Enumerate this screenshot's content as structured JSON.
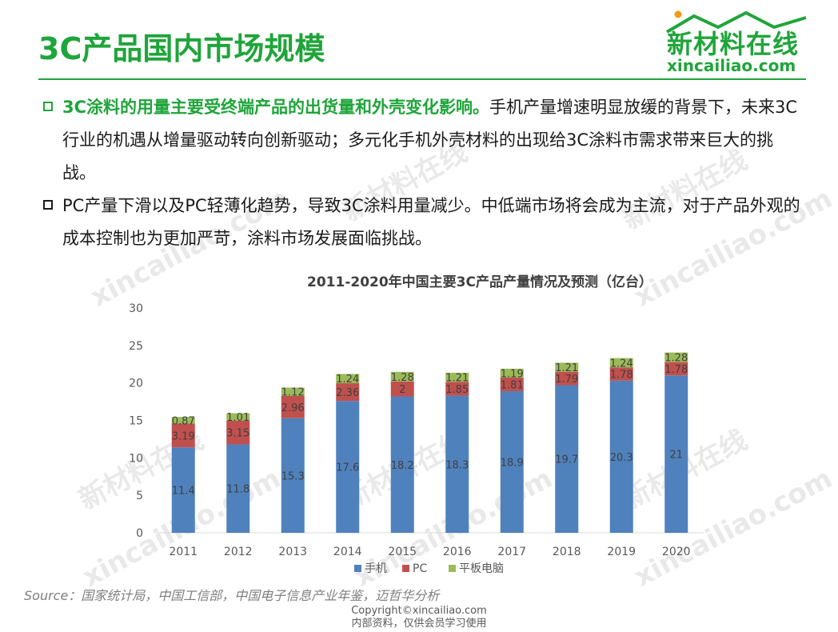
{
  "page": {
    "title": "3C产品国内市场规模",
    "logo_cn": "新材料在线",
    "logo_en": "xincailiao.com",
    "bullets": [
      {
        "highlight": "3C涂料的用量主要受终端产品的出货量和外壳变化影响。",
        "text": "手机产量增速明显放缓的背景下，未来3C行业的机遇从增量驱动转向创新驱动；多元化手机外壳材料的出现给3C涂料市需求带来巨大的挑战。"
      },
      {
        "highlight": "",
        "text": "PC产量下滑以及PC轻薄化趋势，导致3C涂料用量减少。中低端市场将会成为主流，对于产品外观的成本控制也为更加严苛，涂料市场发展面临挑战。"
      }
    ],
    "source": "Source：国家统计局，中国工信部，中国电子信息产业年鉴，迈哲华分析",
    "copyright_line1": "Copyright©xincailiao.com",
    "copyright_line2": "内部资料，仅供会员学习使用",
    "watermark_cn": "新材料在线",
    "watermark_en": "xincailiao.com"
  },
  "colors": {
    "brand_green": "#1fa53a",
    "phone": "#4f81bd",
    "pc": "#c0504d",
    "tablet": "#9bbb59"
  },
  "chart_data": {
    "type": "bar",
    "stacked": true,
    "title": "2011-2020年中国主要3C产品产量情况及预测（亿台）",
    "categories": [
      "2011",
      "2012",
      "2013",
      "2014",
      "2015",
      "2016",
      "2017",
      "2018",
      "2019",
      "2020"
    ],
    "series": [
      {
        "name": "手机",
        "color": "#4f81bd",
        "values": [
          11.4,
          11.8,
          15.3,
          17.6,
          18.2,
          18.3,
          18.9,
          19.7,
          20.3,
          21
        ]
      },
      {
        "name": "PC",
        "color": "#c0504d",
        "values": [
          3.19,
          3.15,
          2.96,
          2.36,
          2,
          1.85,
          1.81,
          1.79,
          1.78,
          1.78
        ]
      },
      {
        "name": "平板电脑",
        "color": "#9bbb59",
        "values": [
          0.87,
          1.01,
          1.12,
          1.24,
          1.28,
          1.21,
          1.19,
          1.21,
          1.24,
          1.28
        ]
      }
    ],
    "ylim": [
      0,
      30
    ],
    "yticks": [
      0,
      5,
      10,
      15,
      20,
      25,
      30
    ],
    "legend": "bottom",
    "grid": false
  }
}
